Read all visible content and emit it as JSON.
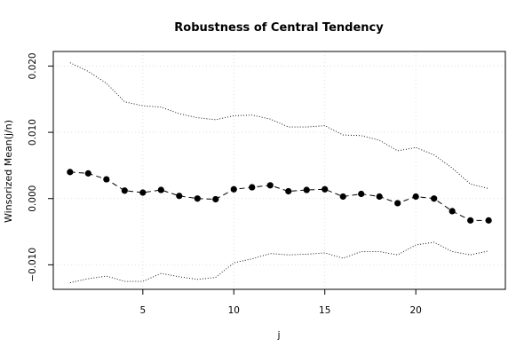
{
  "chart_data": {
    "type": "line",
    "title": "Robustness of Central Tendency",
    "xlabel": "j",
    "ylabel": "Winsorized Mean(j/n)",
    "xlim": [
      0.08,
      24.92
    ],
    "ylim": [
      -0.0137,
      0.0222
    ],
    "x_ticks": [
      5,
      10,
      15,
      20
    ],
    "y_ticks": [
      -0.01,
      0.0,
      0.01,
      0.02
    ],
    "x_tick_labels": [
      "5",
      "10",
      "15",
      "20"
    ],
    "y_tick_labels": [
      "−0.010",
      "0.000",
      "0.010",
      "0.020"
    ],
    "grid": true,
    "x": [
      1,
      2,
      3,
      4,
      5,
      6,
      7,
      8,
      9,
      10,
      11,
      12,
      13,
      14,
      15,
      16,
      17,
      18,
      19,
      20,
      21,
      22,
      23,
      24
    ],
    "series": [
      {
        "role": "mean",
        "style": "dashed-with-points",
        "values": [
          0.004,
          0.0038,
          0.0029,
          0.0012,
          0.0009,
          0.0013,
          0.0004,
          0.0,
          -0.0001,
          0.0014,
          0.0017,
          0.002,
          0.0011,
          0.0013,
          0.0014,
          0.0003,
          0.0007,
          0.0003,
          -0.0007,
          0.0003,
          0.0,
          -0.0019,
          -0.0033,
          -0.0033
        ]
      },
      {
        "role": "upper-bound",
        "style": "dotted",
        "values": [
          0.0205,
          0.0192,
          0.0174,
          0.0146,
          0.014,
          0.0138,
          0.0128,
          0.0122,
          0.0119,
          0.0125,
          0.0126,
          0.012,
          0.0108,
          0.0108,
          0.011,
          0.0096,
          0.0095,
          0.0088,
          0.0072,
          0.0077,
          0.0066,
          0.0046,
          0.0022,
          0.0015
        ]
      },
      {
        "role": "lower-bound",
        "style": "dotted",
        "values": [
          -0.0127,
          -0.0121,
          -0.0117,
          -0.0125,
          -0.0125,
          -0.0113,
          -0.0118,
          -0.0122,
          -0.0119,
          -0.0097,
          -0.0091,
          -0.0083,
          -0.0085,
          -0.0084,
          -0.0082,
          -0.009,
          -0.008,
          -0.008,
          -0.0085,
          -0.007,
          -0.0066,
          -0.008,
          -0.0085,
          -0.0079
        ]
      }
    ]
  }
}
